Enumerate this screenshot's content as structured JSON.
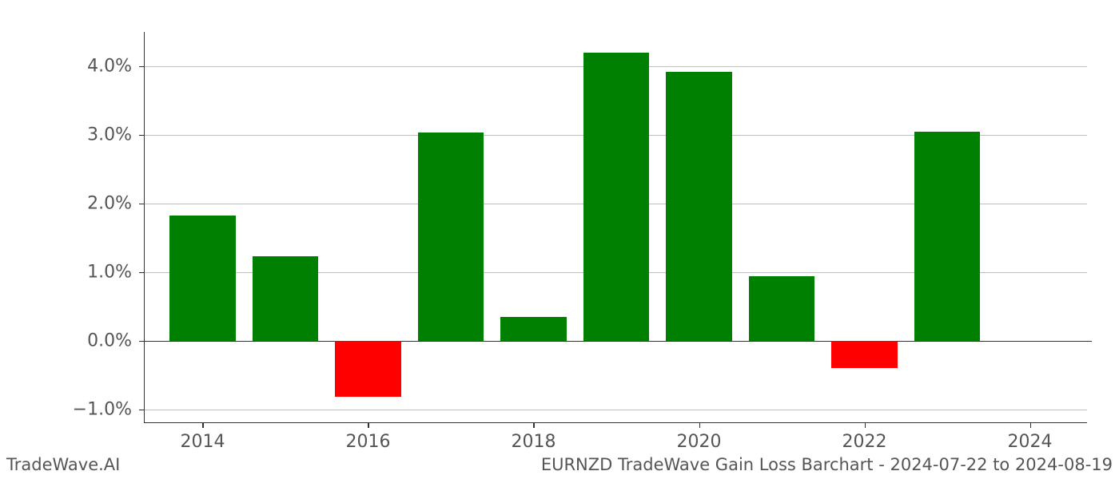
{
  "chart": {
    "type": "bar",
    "years": [
      2014,
      2015,
      2016,
      2017,
      2018,
      2019,
      2020,
      2021,
      2022,
      2023
    ],
    "values": [
      1.82,
      1.23,
      -0.82,
      3.04,
      0.35,
      4.2,
      3.92,
      0.94,
      -0.4,
      3.05
    ],
    "bar_colors": [
      "#008000",
      "#008000",
      "#ff0000",
      "#008000",
      "#008000",
      "#008000",
      "#008000",
      "#008000",
      "#ff0000",
      "#008000"
    ],
    "positive_color": "#008000",
    "negative_color": "#ff0000",
    "background_color": "#ffffff",
    "grid_color": "#bfbfbf",
    "axis_color": "#333333",
    "tick_label_color": "#555555",
    "ylim": [
      -1.2,
      4.5
    ],
    "y_ticks": [
      -1.0,
      0.0,
      1.0,
      2.0,
      3.0,
      4.0
    ],
    "y_tick_labels": [
      "−1.0%",
      "0.0%",
      "1.0%",
      "2.0%",
      "3.0%",
      "4.0%"
    ],
    "x_ticks": [
      2014,
      2016,
      2018,
      2020,
      2022,
      2024
    ],
    "x_tick_labels": [
      "2014",
      "2016",
      "2018",
      "2020",
      "2022",
      "2024"
    ],
    "x_domain": [
      2013.3,
      2024.7
    ],
    "bar_width_years": 0.8,
    "tick_fontsize": 22,
    "footer_fontsize": 21
  },
  "footer": {
    "left": "TradeWave.AI",
    "right": "EURNZD TradeWave Gain Loss Barchart - 2024-07-22 to 2024-08-19"
  }
}
